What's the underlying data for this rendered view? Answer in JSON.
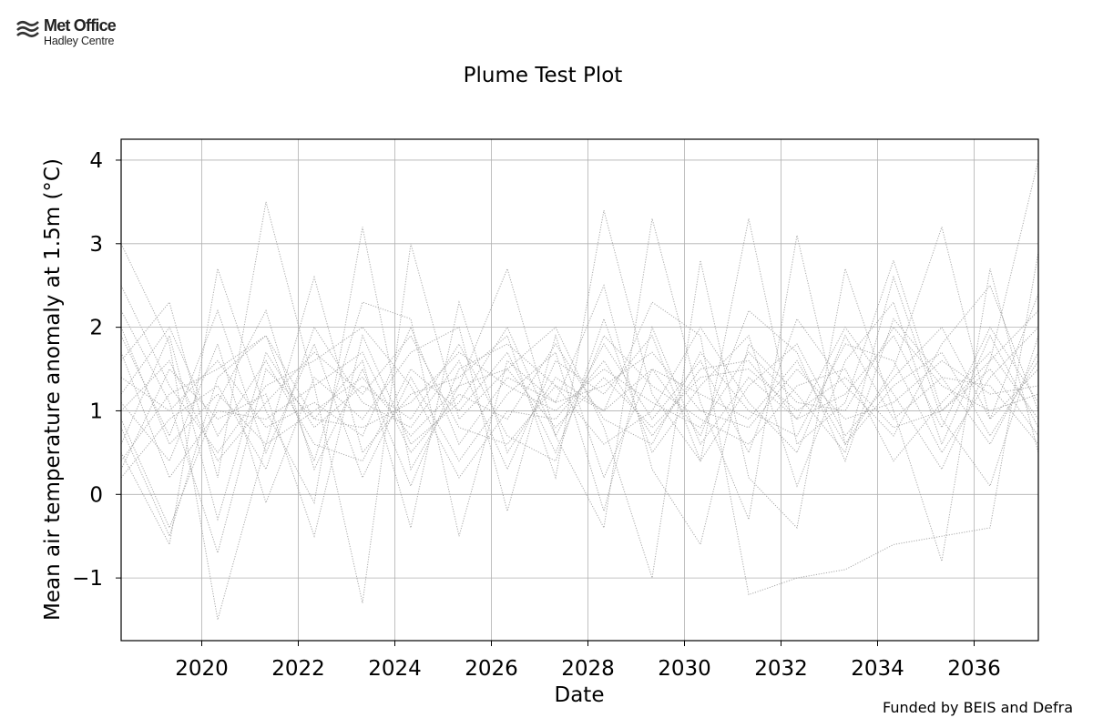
{
  "logo": {
    "name": "Met Office",
    "subname": "Hadley Centre"
  },
  "footer": {
    "funded": "Funded by BEIS and Defra"
  },
  "chart_data": {
    "type": "line",
    "title": "Plume Test Plot",
    "xlabel": "Date",
    "ylabel": "Mean air temperature anomaly at 1.5m (°C)",
    "xlim": [
      2018.33,
      2037.33
    ],
    "ylim": [
      -1.75,
      4.25
    ],
    "xticks": [
      2020,
      2022,
      2024,
      2026,
      2028,
      2030,
      2032,
      2034,
      2036
    ],
    "xtick_labels": [
      "2020",
      "2022",
      "2024",
      "2026",
      "2028",
      "2030",
      "2032",
      "2034",
      "2036"
    ],
    "yticks": [
      -1,
      0,
      1,
      2,
      3,
      4
    ],
    "ytick_labels": [
      "−1",
      "0",
      "1",
      "2",
      "3",
      "4"
    ],
    "grid": true,
    "line_color": "#a0a0a0",
    "x": [
      2018.33,
      2019.33,
      2020.33,
      2021.33,
      2022.33,
      2023.33,
      2024.33,
      2025.33,
      2026.33,
      2027.33,
      2028.33,
      2029.33,
      2030.33,
      2031.33,
      2032.33,
      2033.33,
      2034.33,
      2035.33,
      2036.33,
      2037.33
    ],
    "series": [
      {
        "values": [
          3.0,
          1.8,
          -1.5,
          0.6,
          2.6,
          0.5,
          1.2,
          1.4,
          1.9,
          0.2,
          3.4,
          1.2,
          0.4,
          3.3,
          0.6,
          1.1,
          2.8,
          1.0,
          1.6,
          4.0
        ]
      },
      {
        "values": [
          0.5,
          -0.6,
          2.7,
          1.0,
          -0.1,
          3.2,
          0.3,
          1.3,
          2.7,
          0.7,
          -0.4,
          3.3,
          1.1,
          -0.3,
          3.1,
          0.6,
          1.5,
          3.2,
          0.9,
          2.4
        ]
      },
      {
        "values": [
          1.6,
          2.3,
          0.2,
          3.5,
          1.3,
          -1.3,
          3.0,
          0.9,
          1.5,
          2.0,
          0.8,
          -1.0,
          2.8,
          0.2,
          -0.4,
          2.7,
          1.0,
          -0.8,
          2.7,
          0.5
        ]
      },
      {
        "values": [
          0.8,
          -0.5,
          1.4,
          1.9,
          0.4,
          2.3,
          2.1,
          -0.5,
          1.6,
          1.1,
          2.5,
          0.3,
          -0.6,
          1.8,
          1.2,
          0.5,
          2.6,
          0.9,
          0.1,
          1.9
        ]
      },
      {
        "values": [
          2.2,
          1.1,
          -0.7,
          1.5,
          0.9,
          1.6,
          -0.4,
          2.3,
          0.5,
          1.4,
          1.0,
          2.3,
          1.9,
          -1.2,
          -1.0,
          -0.9,
          -0.6,
          -0.5,
          -0.4,
          2.9
        ]
      },
      {
        "values": [
          1.1,
          0.4,
          1.8,
          -0.1,
          1.4,
          0.9,
          1.7,
          2.0,
          -0.2,
          1.9,
          0.2,
          1.5,
          0.7,
          2.2,
          1.7,
          0.4,
          2.1,
          1.4,
          1.3,
          0.6
        ]
      },
      {
        "values": [
          0.3,
          1.5,
          0.9,
          1.2,
          -0.5,
          1.9,
          0.6,
          1.1,
          2.0,
          0.7,
          1.8,
          0.9,
          1.6,
          0.5,
          2.1,
          1.3,
          0.7,
          1.8,
          2.5,
          1.0
        ]
      },
      {
        "values": [
          1.9,
          0.7,
          2.2,
          0.5,
          1.8,
          0.2,
          1.4,
          0.4,
          1.2,
          1.7,
          -0.2,
          2.0,
          0.6,
          1.4,
          0.9,
          2.0,
          1.2,
          0.3,
          1.6,
          2.2
        ]
      },
      {
        "values": [
          0.6,
          1.9,
          -0.3,
          1.7,
          0.8,
          1.3,
          0.9,
          1.8,
          0.7,
          0.4,
          2.1,
          0.5,
          1.3,
          1.9,
          0.1,
          1.6,
          2.3,
          0.6,
          1.9,
          0.8
        ]
      },
      {
        "values": [
          1.4,
          1.0,
          1.6,
          0.8,
          1.1,
          0.7,
          2.0,
          0.6,
          1.4,
          1.1,
          1.3,
          1.7,
          1.0,
          0.8,
          1.5,
          0.9,
          1.1,
          1.6,
          1.2,
          1.3
        ]
      },
      {
        "values": [
          0.9,
          -0.4,
          1.1,
          2.2,
          0.3,
          1.5,
          0.1,
          1.5,
          1.8,
          1.3,
          0.6,
          1.0,
          2.0,
          1.1,
          0.5,
          1.9,
          0.9,
          1.4,
          0.6,
          1.7
        ]
      },
      {
        "values": [
          2.5,
          1.3,
          0.5,
          1.3,
          1.6,
          2.0,
          1.3,
          0.2,
          1.0,
          0.9,
          1.6,
          0.7,
          1.5,
          1.6,
          0.9,
          1.2,
          1.9,
          0.8,
          2.0,
          1.1
        ]
      },
      {
        "values": [
          0.2,
          0.9,
          1.3,
          0.3,
          2.0,
          1.1,
          0.8,
          1.6,
          0.3,
          1.6,
          1.2,
          1.9,
          0.4,
          1.3,
          1.8,
          0.7,
          1.4,
          2.0,
          0.9,
          1.5
        ]
      },
      {
        "values": [
          1.2,
          2.0,
          0.7,
          1.6,
          0.6,
          0.4,
          1.5,
          1.0,
          1.7,
          0.5,
          1.9,
          1.3,
          0.9,
          0.6,
          1.3,
          1.5,
          0.4,
          1.1,
          1.7,
          0.9
        ]
      },
      {
        "values": [
          1.7,
          0.2,
          1.0,
          0.9,
          1.3,
          1.7,
          0.5,
          1.2,
          0.9,
          1.8,
          0.9,
          0.6,
          1.7,
          1.0,
          0.7,
          1.8,
          1.6,
          0.5,
          1.4,
          2.0
        ]
      },
      {
        "values": [
          0.4,
          1.2,
          1.5,
          1.9,
          0.9,
          0.8,
          1.1,
          1.7,
          1.3,
          1.0,
          1.5,
          1.1,
          0.8,
          1.7,
          1.1,
          1.0,
          2.0,
          1.3,
          1.0,
          1.2
        ]
      },
      {
        "values": [
          1.0,
          1.6,
          0.4,
          1.1,
          1.7,
          1.2,
          1.9,
          0.8,
          0.6,
          1.3,
          1.0,
          1.5,
          1.2,
          0.9,
          1.6,
          0.6,
          1.3,
          1.7,
          0.7,
          1.6
        ]
      },
      {
        "values": [
          2.0,
          0.6,
          1.2,
          0.6,
          1.0,
          1.4,
          0.7,
          1.3,
          1.5,
          0.8,
          1.4,
          0.8,
          1.4,
          1.5,
          1.0,
          1.4,
          0.8,
          1.0,
          1.5,
          0.7
        ]
      }
    ]
  }
}
